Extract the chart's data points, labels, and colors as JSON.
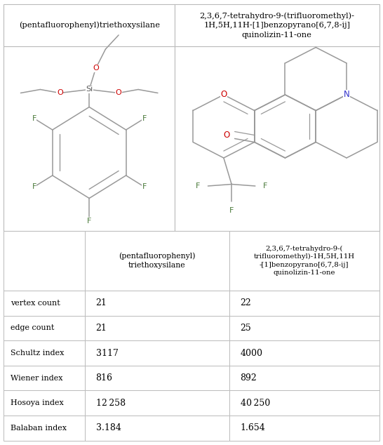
{
  "col1_header": "(pentafluorophenyl)triethoxysilane",
  "col2_header": "2,3,6,7-tetrahydro-9-(trifluoromethyl)-\n1H,5H,11H-[1]benzopyrano[6,7,8-ij]\nquinolizin-11-one",
  "table_col1_header": "(pentafluorophenyl)\ntriethoxysilane",
  "table_col2_header": "2,3,6,7-tetrahydro-9-(\ntrifluoromethyl)-1H,5H,11H\n-[1]benzopyrano[6,7,8-ij]\nquinolizin-11-one",
  "rows": [
    [
      "vertex count",
      "21",
      "22"
    ],
    [
      "edge count",
      "21",
      "25"
    ],
    [
      "Schultz index",
      "3117",
      "4000"
    ],
    [
      "Wiener index",
      "816",
      "892"
    ],
    [
      "Hosoya index",
      "12 258",
      "40 250"
    ],
    [
      "Balaban index",
      "3.184",
      "1.654"
    ]
  ],
  "bg_color": "#ffffff",
  "border_color": "#bbbbbb",
  "text_color": "#000000",
  "atom_color_O": "#cc0000",
  "atom_color_F": "#4a7a3a",
  "atom_color_Si": "#555555",
  "atom_color_N": "#3333cc",
  "bond_color": "#999999",
  "divx": 0.455
}
